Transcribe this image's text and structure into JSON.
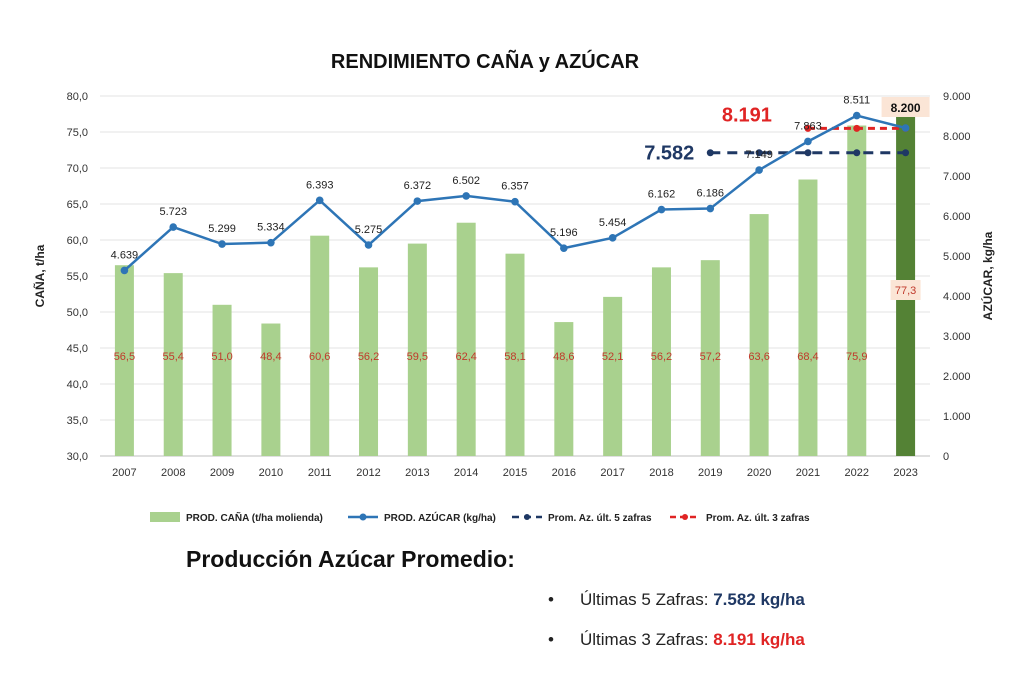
{
  "chart_data": {
    "type": "bar",
    "title": "RENDIMIENTO CAÑA y AZÚCAR",
    "categories": [
      "2007",
      "2008",
      "2009",
      "2010",
      "2011",
      "2012",
      "2013",
      "2014",
      "2015",
      "2016",
      "2017",
      "2018",
      "2019",
      "2020",
      "2021",
      "2022",
      "2023"
    ],
    "bar_series": {
      "name": "PROD. CAÑA (t/ha molienda)",
      "values": [
        56.5,
        55.4,
        51.0,
        48.4,
        60.6,
        56.2,
        59.5,
        62.4,
        58.1,
        48.6,
        52.1,
        56.2,
        57.2,
        63.6,
        68.4,
        75.9,
        77.3
      ],
      "labels": [
        "56,5",
        "55,4",
        "51,0",
        "48,4",
        "60,6",
        "56,2",
        "59,5",
        "62,4",
        "58,1",
        "48,6",
        "52,1",
        "56,2",
        "57,2",
        "63,6",
        "68,4",
        "75,9",
        "77,3"
      ],
      "color": "#a9d18e",
      "highlight_color": "#548235",
      "label_color": "#c0392b"
    },
    "line_series": {
      "name": "PROD. AZÚCAR (kg/ha)",
      "values": [
        4639,
        5723,
        5299,
        5334,
        6393,
        5275,
        6372,
        6502,
        6357,
        5196,
        5454,
        6162,
        6186,
        7149,
        7863,
        8511,
        8200
      ],
      "labels": [
        "4.639",
        "5.723",
        "5.299",
        "5.334",
        "6.393",
        "5.275",
        "6.372",
        "6.502",
        "6.357",
        "5.196",
        "5.454",
        "6.162",
        "6.186",
        "7.149",
        "7.863",
        "8.511",
        "8.200"
      ],
      "color": "#2e75b6"
    },
    "avg5": {
      "name": "Prom. Az. últ. 5 zafras",
      "value": 7582,
      "label": "7.582",
      "from": "2019",
      "to": "2023",
      "color": "#1f3864"
    },
    "avg3": {
      "name": "Prom. Az. últ. 3 zafras",
      "value": 8191,
      "label": "8.191",
      "from": "2021",
      "to": "2023",
      "color": "#e02424"
    },
    "y_left": {
      "label": "CAÑA, t/ha",
      "min": 30,
      "max": 80,
      "ticks": [
        30,
        35,
        40,
        45,
        50,
        55,
        60,
        65,
        70,
        75,
        80
      ],
      "tick_labels": [
        "30,0",
        "35,0",
        "40,0",
        "45,0",
        "50,0",
        "55,0",
        "60,0",
        "65,0",
        "70,0",
        "75,0",
        "80,0"
      ]
    },
    "y_right": {
      "label": "AZÚCAR, kg/ha",
      "min": 0,
      "max": 9000,
      "ticks": [
        0,
        1000,
        2000,
        3000,
        4000,
        5000,
        6000,
        7000,
        8000,
        9000
      ],
      "tick_labels": [
        "0",
        "1.000",
        "2.000",
        "3.000",
        "4.000",
        "5.000",
        "6.000",
        "7.000",
        "8.000",
        "9.000"
      ]
    },
    "grid": true,
    "legend": "bottom"
  },
  "summary": {
    "title": "Producción Azúcar Promedio:",
    "items": [
      {
        "bullet": "•",
        "label": "Últimas 5 Zafras: ",
        "value": "7.582 kg/ha"
      },
      {
        "bullet": "•",
        "label": "Últimas 3 Zafras: ",
        "value": "8.191 kg/ha"
      }
    ]
  }
}
